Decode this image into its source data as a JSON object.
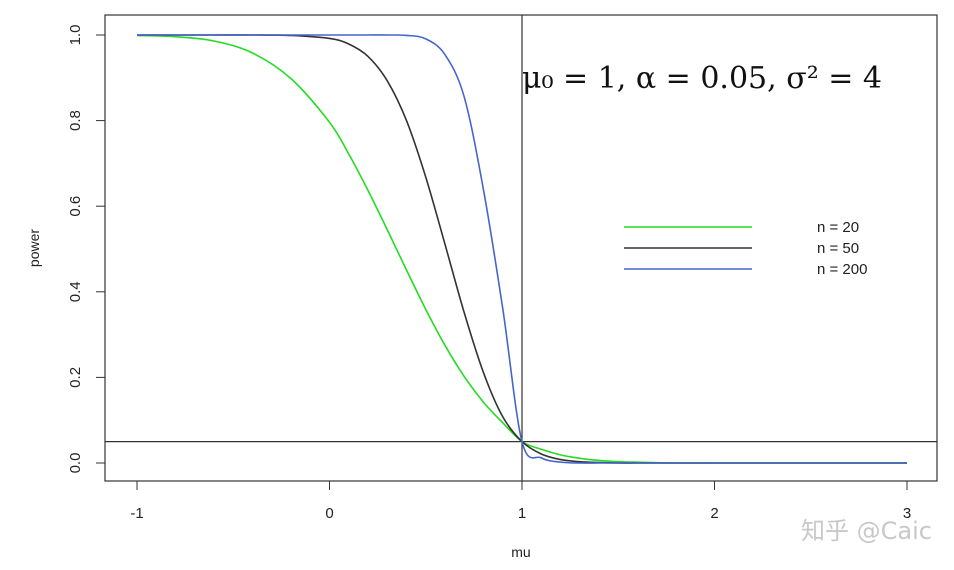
{
  "chart_data": {
    "type": "line",
    "xlabel": "mu",
    "ylabel": "power",
    "xlim": [
      -1,
      3
    ],
    "ylim": [
      0,
      1
    ],
    "xticks": [
      "-1",
      "0",
      "1",
      "2",
      "3"
    ],
    "yticks": [
      "0.0",
      "0.2",
      "0.4",
      "0.6",
      "0.8",
      "1.0"
    ],
    "annotation": "μ₀ = 1,    α = 0.05,    σ² = 4",
    "reference_lines": {
      "vertical_x": 1,
      "horizontal_y": 0.05
    },
    "legend_position": "right",
    "x": [
      -1.0,
      -0.8,
      -0.6,
      -0.4,
      -0.2,
      0.0,
      0.1,
      0.2,
      0.3,
      0.4,
      0.5,
      0.6,
      0.7,
      0.8,
      0.9,
      1.0,
      1.1,
      1.2,
      1.3,
      1.4,
      1.5,
      1.6,
      1.8,
      2.0,
      2.5,
      3.0
    ],
    "series": [
      {
        "name": "n = 20",
        "color": "#22dd22",
        "values": [
          0.999,
          0.996,
          0.986,
          0.958,
          0.898,
          0.796,
          0.722,
          0.637,
          0.545,
          0.451,
          0.359,
          0.275,
          0.202,
          0.142,
          0.094,
          0.05,
          0.032,
          0.019,
          0.011,
          0.006,
          0.003,
          0.002,
          0.0,
          0.0,
          0.0,
          0.0
        ]
      },
      {
        "name": "n = 50",
        "color": "#333333",
        "values": [
          1.0,
          1.0,
          1.0,
          1.0,
          0.999,
          0.992,
          0.979,
          0.95,
          0.893,
          0.8,
          0.668,
          0.511,
          0.351,
          0.211,
          0.108,
          0.05,
          0.021,
          0.008,
          0.003,
          0.001,
          0.0,
          0.0,
          0.0,
          0.0,
          0.0,
          0.0
        ]
      },
      {
        "name": "n = 200",
        "color": "#4466cc",
        "values": [
          1.0,
          1.0,
          1.0,
          1.0,
          1.0,
          1.0,
          1.0,
          1.0,
          1.0,
          0.999,
          0.991,
          0.954,
          0.855,
          0.638,
          0.361,
          0.05,
          0.012,
          0.002,
          0.0,
          0.0,
          0.0,
          0.0,
          0.0,
          0.0,
          0.0,
          0.0
        ]
      }
    ]
  },
  "watermark": "知乎 @Caic"
}
